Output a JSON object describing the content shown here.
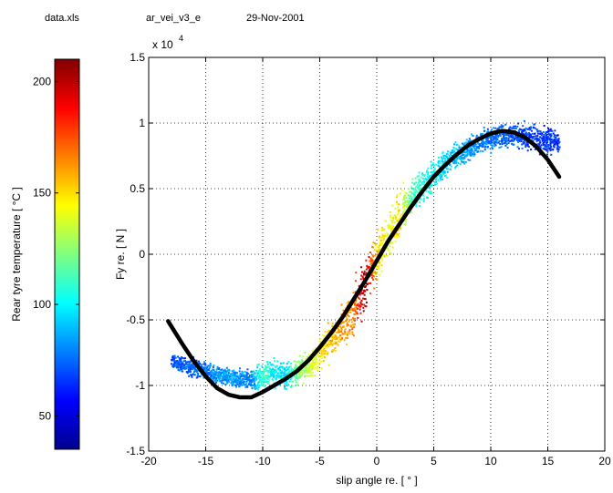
{
  "header": {
    "file": "data.xls",
    "model": "ar_vei_v3_e",
    "date": "29-Nov-2001"
  },
  "chart_data": {
    "type": "scatter",
    "xlabel": "slip angle re.  [ ° ]",
    "ylabel": "Fy re. [ N ]",
    "y_exponent_label": "x 10",
    "y_exponent": "4",
    "xlim": [
      -20,
      20
    ],
    "ylim": [
      -1.5,
      1.5
    ],
    "x_ticks": [
      -20,
      -15,
      -10,
      -5,
      0,
      5,
      10,
      15,
      20
    ],
    "x_tick_labels": [
      "-20",
      "-15",
      "-10",
      "-5",
      "0",
      "5",
      "10",
      "15",
      "20"
    ],
    "y_ticks": [
      -1.5,
      -1,
      -0.5,
      0,
      0.5,
      1,
      1.5
    ],
    "y_tick_labels": [
      "-1.5",
      "-1",
      "-0.5",
      "0",
      "0.5",
      "1",
      "1.5"
    ],
    "grid": true,
    "colorbar": {
      "label": "Rear tyre temperature  [ °C ]",
      "range": [
        35,
        210
      ],
      "ticks": [
        50,
        100,
        150,
        200
      ],
      "tick_labels": [
        "50",
        "100",
        "150",
        "200"
      ],
      "colormap": "jet"
    },
    "series": [
      {
        "kind": "fit-curve",
        "color": "#000000",
        "x": [
          -18.3,
          -17,
          -16,
          -15,
          -14,
          -13,
          -12,
          -11,
          -10,
          -9,
          -8,
          -7,
          -6,
          -5,
          -4,
          -3,
          -2,
          -1,
          0,
          1,
          2,
          3,
          4,
          5,
          6,
          7,
          8,
          9,
          10,
          11,
          12,
          13,
          14,
          15,
          16
        ],
        "y": [
          -0.51,
          -0.69,
          -0.82,
          -0.93,
          -1.02,
          -1.07,
          -1.09,
          -1.09,
          -1.05,
          -1.0,
          -0.95,
          -0.89,
          -0.81,
          -0.71,
          -0.6,
          -0.48,
          -0.34,
          -0.2,
          -0.05,
          0.1,
          0.23,
          0.36,
          0.48,
          0.59,
          0.68,
          0.76,
          0.83,
          0.88,
          0.92,
          0.94,
          0.93,
          0.89,
          0.82,
          0.72,
          0.59
        ]
      },
      {
        "kind": "measured",
        "x": [
          -18,
          -17,
          -16,
          -15,
          -14,
          -13,
          -12,
          -11,
          -10,
          -9,
          -8,
          -7,
          -6,
          -5,
          -4,
          -3,
          -2,
          -1.5,
          -1,
          -0.5,
          0,
          1,
          2,
          3,
          4,
          5,
          6,
          7,
          8,
          9,
          10,
          11,
          12,
          13,
          14,
          15,
          16
        ],
        "y": [
          -0.82,
          -0.84,
          -0.87,
          -0.89,
          -0.92,
          -0.94,
          -0.95,
          -0.96,
          -0.93,
          -0.9,
          -0.92,
          -0.9,
          -0.84,
          -0.76,
          -0.66,
          -0.55,
          -0.42,
          -0.32,
          -0.22,
          -0.12,
          -0.02,
          0.15,
          0.3,
          0.42,
          0.52,
          0.6,
          0.68,
          0.75,
          0.8,
          0.85,
          0.88,
          0.9,
          0.91,
          0.9,
          0.88,
          0.86,
          0.84
        ],
        "temperature": [
          70,
          72,
          74,
          78,
          80,
          84,
          82,
          80,
          110,
          100,
          95,
          120,
          135,
          145,
          155,
          160,
          165,
          190,
          205,
          175,
          150,
          140,
          150,
          115,
          105,
          100,
          95,
          90,
          85,
          80,
          78,
          75,
          72,
          70,
          68,
          66,
          65
        ],
        "spread": [
          0.04,
          0.04,
          0.05,
          0.05,
          0.05,
          0.05,
          0.05,
          0.05,
          0.07,
          0.07,
          0.07,
          0.07,
          0.08,
          0.08,
          0.09,
          0.1,
          0.12,
          0.13,
          0.14,
          0.14,
          0.13,
          0.12,
          0.12,
          0.1,
          0.09,
          0.08,
          0.07,
          0.07,
          0.07,
          0.06,
          0.06,
          0.06,
          0.06,
          0.07,
          0.07,
          0.07,
          0.06
        ]
      }
    ]
  }
}
